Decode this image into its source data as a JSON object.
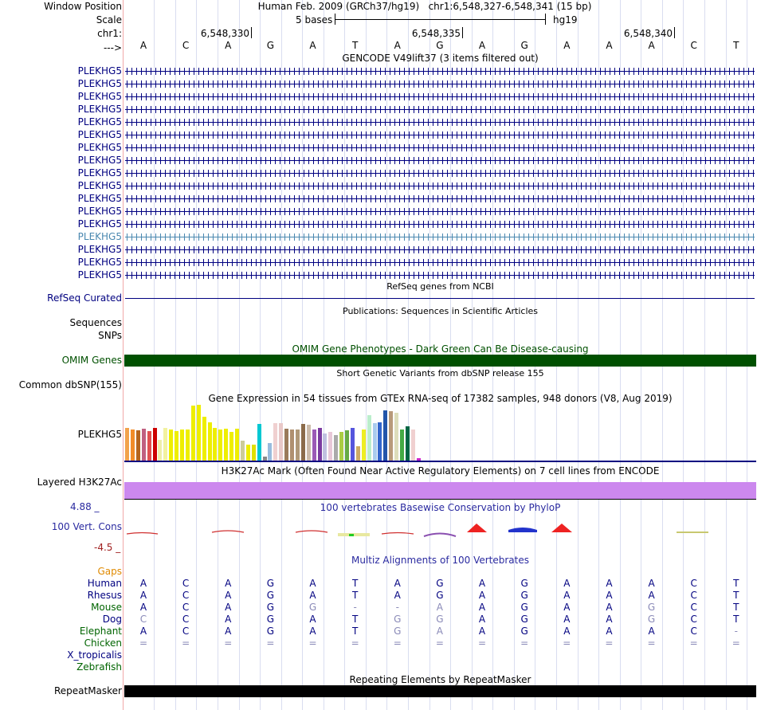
{
  "position": {
    "label": "Window Position",
    "assembly": "Human Feb. 2009 (GRCh37/hg19)",
    "coords": "chr1:6,548,327-6,548,341 (15 bp)"
  },
  "scale": {
    "label": "Scale",
    "text": "5 bases",
    "db": "hg19"
  },
  "ruler": {
    "chrom_label": "chr1:",
    "strand_label": "--->",
    "ticks": [
      "6,548,330",
      "6,548,335",
      "6,548,340"
    ]
  },
  "sequence": [
    "A",
    "C",
    "A",
    "G",
    "A",
    "T",
    "A",
    "G",
    "A",
    "G",
    "A",
    "A",
    "A",
    "C",
    "T"
  ],
  "gencode": {
    "title": "GENCODE V49lift37 (3 items filtered out)",
    "genes": [
      "PLEKHG5",
      "PLEKHG5",
      "PLEKHG5",
      "PLEKHG5",
      "PLEKHG5",
      "PLEKHG5",
      "PLEKHG5",
      "PLEKHG5",
      "PLEKHG5",
      "PLEKHG5",
      "PLEKHG5",
      "PLEKHG5",
      "PLEKHG5",
      "PLEKHG5",
      "PLEKHG5",
      "PLEKHG5",
      "PLEKHG5"
    ],
    "highlight_row": 13,
    "gene_color": "#000080",
    "highlight_color": "#4a88b0"
  },
  "refseq": {
    "title": "RefSeq genes from NCBI",
    "label": "RefSeq Curated"
  },
  "publications": {
    "title": "Publications: Sequences in Scientific Articles",
    "label_sequences": "Sequences",
    "label_snps": "SNPs"
  },
  "omim": {
    "title": "OMIM Gene Phenotypes - Dark Green Can Be Disease-causing",
    "label": "OMIM Genes",
    "color": "#005000"
  },
  "dbsnp": {
    "title": "Short Genetic Variants from dbSNP release 155",
    "label": "Common dbSNP(155)"
  },
  "gtex": {
    "title": "Gene Expression in 54 tissues from GTEx RNA-seq of 17382 samples, 948 donors (V8, Aug 2019)",
    "label": "PLEKHG5",
    "values": [
      0.59,
      0.55,
      0.54,
      0.57,
      0.53,
      0.58,
      0.37,
      0.58,
      0.55,
      0.53,
      0.55,
      0.56,
      0.99,
      1.0,
      0.78,
      0.69,
      0.59,
      0.55,
      0.57,
      0.51,
      0.57,
      0.35,
      0.28,
      0.29,
      0.65,
      0.07,
      0.31,
      0.67,
      0.67,
      0.57,
      0.55,
      0.55,
      0.65,
      0.64,
      0.55,
      0.58,
      0.48,
      0.52,
      0.46,
      0.51,
      0.54,
      0.59,
      0.25,
      0.56,
      0.82,
      0.67,
      0.68,
      0.9,
      0.88,
      0.86,
      0.55,
      0.61,
      0.56,
      0.04
    ],
    "colors": [
      "#f2a24b",
      "#f28c28",
      "#b5651d",
      "#c06080",
      "#e05050",
      "#cc0000",
      "#eeeeaa",
      "#f2f2a0",
      "#eeee00",
      "#eeee00",
      "#eeee00",
      "#eeee00",
      "#eeee00",
      "#eeee00",
      "#eeee00",
      "#eeee00",
      "#eeee00",
      "#eeee00",
      "#eeee00",
      "#eeee00",
      "#eeee00",
      "#cccc99",
      "#eeee00",
      "#e0e000",
      "#00c8d2",
      "#888888",
      "#99bbdd",
      "#f0d0d0",
      "#e8c8c8",
      "#9a7a5a",
      "#b09070",
      "#b09878",
      "#8b6b4b",
      "#ccbbaa",
      "#9b59b6",
      "#7a3aa0",
      "#c0c0e0",
      "#e8c8d8",
      "#aaaaaa",
      "#aacc44",
      "#66aa44",
      "#5555dd",
      "#ccaa66",
      "#eeee22",
      "#bbeecc",
      "#aaccee",
      "#3366cc",
      "#2255aa",
      "#b89a7a",
      "#ddddbb",
      "#44aa44",
      "#006644",
      "#f0d0d0",
      "#cc22cc"
    ]
  },
  "h3k27ac": {
    "title": "H3K27Ac Mark (Often Found Near Active Regulatory Elements) on 7 cell lines from ENCODE",
    "label": "Layered H3K27Ac",
    "color": "#cc88ee"
  },
  "phylop": {
    "title": "100 vertebrates Basewise Conservation by PhyloP",
    "label": "100 Vert. Cons",
    "max": "4.88 _",
    "min": "-4.5 _"
  },
  "multiz": {
    "title": "Multiz Alignments of 100 Vertebrates",
    "gaps_label": "Gaps",
    "species": [
      {
        "name": "Human",
        "color": "#000080",
        "bases": [
          "A",
          "C",
          "A",
          "G",
          "A",
          "T",
          "A",
          "G",
          "A",
          "G",
          "A",
          "A",
          "A",
          "C",
          "T"
        ]
      },
      {
        "name": "Rhesus",
        "color": "#000080",
        "bases": [
          "A",
          "C",
          "A",
          "G",
          "A",
          "T",
          "A",
          "G",
          "A",
          "G",
          "A",
          "A",
          "A",
          "C",
          "T"
        ]
      },
      {
        "name": "Mouse",
        "color": "#006400",
        "bases": [
          "A",
          "C",
          "A",
          "G",
          "G",
          "-",
          "-",
          "A",
          "A",
          "G",
          "A",
          "A",
          "G",
          "C",
          "T"
        ]
      },
      {
        "name": "Dog",
        "color": "#000080",
        "bases": [
          "C",
          "C",
          "A",
          "G",
          "A",
          "T",
          "G",
          "G",
          "A",
          "G",
          "A",
          "A",
          "G",
          "C",
          "T"
        ]
      },
      {
        "name": "Elephant",
        "color": "#006400",
        "bases": [
          "A",
          "C",
          "A",
          "G",
          "A",
          "T",
          "G",
          "A",
          "A",
          "G",
          "A",
          "A",
          "A",
          "C",
          "-"
        ]
      },
      {
        "name": "Chicken",
        "color": "#006400",
        "bases": [
          "=",
          "=",
          "=",
          "=",
          "=",
          "=",
          "=",
          "=",
          "=",
          "=",
          "=",
          "=",
          "=",
          "=",
          "="
        ]
      },
      {
        "name": "X_tropicalis",
        "color": "#000080",
        "bases": []
      },
      {
        "name": "Zebrafish",
        "color": "#006400",
        "bases": []
      }
    ],
    "faded": [
      [
        false,
        false,
        false,
        false,
        false,
        false,
        false,
        false,
        false,
        false,
        false,
        false,
        false,
        false,
        false
      ],
      [
        false,
        false,
        false,
        false,
        false,
        false,
        false,
        false,
        false,
        false,
        false,
        false,
        false,
        false,
        false
      ],
      [
        false,
        false,
        false,
        false,
        true,
        true,
        true,
        true,
        false,
        false,
        false,
        false,
        true,
        false,
        false
      ],
      [
        true,
        false,
        false,
        false,
        false,
        false,
        true,
        true,
        false,
        false,
        false,
        false,
        true,
        false,
        false
      ],
      [
        false,
        false,
        false,
        false,
        false,
        false,
        true,
        true,
        false,
        false,
        false,
        false,
        false,
        false,
        true
      ],
      [
        true,
        true,
        true,
        true,
        true,
        true,
        true,
        true,
        true,
        true,
        true,
        true,
        true,
        true,
        true
      ]
    ]
  },
  "repeatmasker": {
    "title": "Repeating Elements by RepeatMasker",
    "label": "RepeatMasker"
  }
}
